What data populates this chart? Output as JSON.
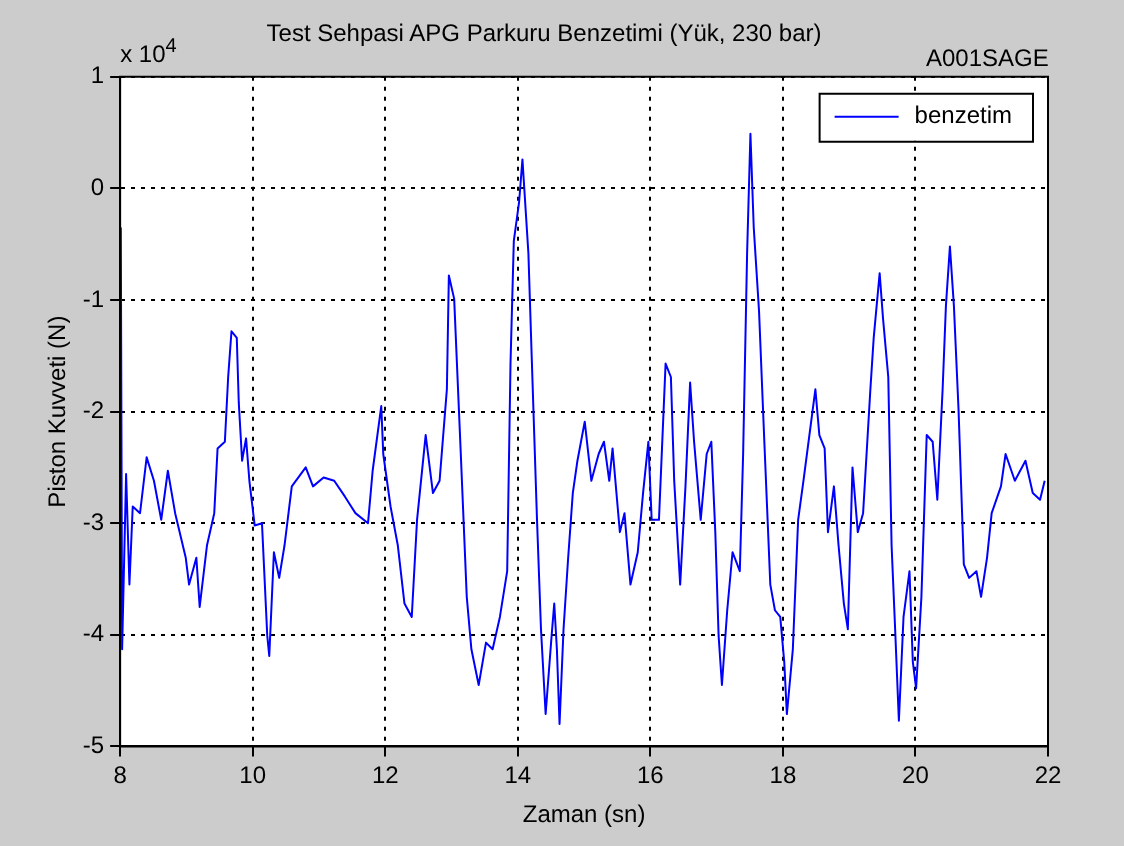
{
  "chart_data": {
    "type": "line",
    "title": "Test Sehpasi APG Parkuru Benzetimi (Yük, 230 bar)",
    "xlabel": "Zaman (sn)",
    "ylabel": "Piston Kuvveti (N)",
    "annotations": [
      "x 10$^{4}$",
      "A001SAGE"
    ],
    "xlim": [
      8,
      22
    ],
    "xticks": [
      8,
      10,
      12,
      14,
      16,
      18,
      20,
      22
    ],
    "ylim": [
      -5,
      1
    ],
    "yticks": [
      -5,
      -4,
      -3,
      -2,
      -1,
      0,
      1
    ],
    "grid": true,
    "legend": "top right",
    "line_style": "solid",
    "series": [
      {
        "name": "benzetim",
        "color": "#0000ff",
        "x": [
          8.01,
          8.03,
          8.09,
          8.14,
          8.19,
          8.3,
          8.4,
          8.51,
          8.62,
          8.72,
          8.83,
          8.99,
          9.04,
          9.15,
          9.2,
          9.31,
          9.42,
          9.47,
          9.58,
          9.63,
          9.68,
          9.76,
          9.79,
          9.84,
          9.9,
          9.95,
          10.03,
          10.14,
          10.22,
          10.25,
          10.32,
          10.4,
          10.48,
          10.59,
          10.8,
          10.91,
          11.07,
          11.23,
          11.39,
          11.55,
          11.74,
          11.81,
          11.94,
          11.97,
          12.08,
          12.19,
          12.29,
          12.4,
          12.48,
          12.61,
          12.72,
          12.82,
          12.93,
          12.96,
          13.04,
          13.14,
          13.23,
          13.3,
          13.41,
          13.52,
          13.62,
          13.73,
          13.84,
          13.89,
          13.94,
          14.02,
          14.07,
          14.16,
          14.21,
          14.29,
          14.35,
          14.42,
          14.51,
          14.55,
          14.59,
          14.63,
          14.69,
          14.76,
          14.83,
          14.9,
          15.01,
          15.11,
          15.22,
          15.3,
          15.38,
          15.43,
          15.54,
          15.61,
          15.7,
          15.81,
          15.89,
          15.97,
          16.02,
          16.13,
          16.23,
          16.31,
          16.36,
          16.45,
          16.53,
          16.6,
          16.66,
          16.76,
          16.85,
          16.92,
          16.98,
          17.03,
          17.08,
          17.16,
          17.24,
          17.35,
          17.4,
          17.46,
          17.51,
          17.56,
          17.64,
          17.72,
          17.81,
          17.88,
          17.96,
          18.02,
          18.06,
          18.15,
          18.23,
          18.31,
          18.42,
          18.49,
          18.55,
          18.63,
          18.68,
          18.77,
          18.84,
          18.92,
          18.98,
          19.05,
          19.13,
          19.21,
          19.32,
          19.37,
          19.46,
          19.51,
          19.59,
          19.64,
          19.69,
          19.75,
          19.82,
          19.91,
          19.96,
          20.01,
          20.09,
          20.17,
          20.26,
          20.33,
          20.41,
          20.46,
          20.52,
          20.58,
          20.65,
          20.73,
          20.81,
          20.92,
          20.99,
          21.08,
          21.15,
          21.29,
          21.36,
          21.5,
          21.66,
          21.77,
          21.88,
          21.95
        ],
        "values": [
          -0.35,
          -4.13,
          -2.56,
          -3.55,
          -2.85,
          -2.91,
          -2.41,
          -2.62,
          -2.97,
          -2.53,
          -2.91,
          -3.31,
          -3.55,
          -3.31,
          -3.75,
          -3.2,
          -2.91,
          -2.33,
          -2.27,
          -1.69,
          -1.28,
          -1.34,
          -1.92,
          -2.44,
          -2.24,
          -2.62,
          -3.02,
          -3.0,
          -4.01,
          -4.19,
          -3.26,
          -3.49,
          -3.2,
          -2.67,
          -2.5,
          -2.67,
          -2.59,
          -2.62,
          -2.76,
          -2.91,
          -3.0,
          -2.53,
          -1.95,
          -2.38,
          -2.85,
          -3.2,
          -3.72,
          -3.84,
          -2.97,
          -2.21,
          -2.73,
          -2.62,
          -1.8,
          -0.78,
          -0.99,
          -2.38,
          -3.66,
          -4.13,
          -4.45,
          -4.07,
          -4.13,
          -3.84,
          -3.43,
          -1.57,
          -0.47,
          -0.12,
          0.26,
          -0.58,
          -1.51,
          -2.97,
          -3.95,
          -4.71,
          -4.01,
          -3.72,
          -4.13,
          -4.8,
          -3.95,
          -3.31,
          -2.73,
          -2.44,
          -2.09,
          -2.62,
          -2.38,
          -2.27,
          -2.62,
          -2.33,
          -3.08,
          -2.91,
          -3.55,
          -3.26,
          -2.73,
          -2.27,
          -2.97,
          -2.97,
          -1.57,
          -1.69,
          -2.62,
          -3.55,
          -2.67,
          -1.74,
          -2.27,
          -2.97,
          -2.38,
          -2.27,
          -3.08,
          -4.01,
          -4.45,
          -3.78,
          -3.26,
          -3.43,
          -2.38,
          -0.58,
          0.49,
          -0.35,
          -1.1,
          -2.27,
          -3.55,
          -3.78,
          -3.84,
          -4.24,
          -4.71,
          -4.13,
          -2.97,
          -2.62,
          -2.12,
          -1.8,
          -2.21,
          -2.33,
          -3.08,
          -2.67,
          -3.2,
          -3.72,
          -3.95,
          -2.5,
          -3.08,
          -2.91,
          -1.8,
          -1.34,
          -0.76,
          -1.16,
          -1.69,
          -3.2,
          -3.9,
          -4.77,
          -3.84,
          -3.43,
          -4.24,
          -4.48,
          -3.66,
          -2.21,
          -2.27,
          -2.79,
          -1.8,
          -1.05,
          -0.52,
          -1.05,
          -1.98,
          -3.37,
          -3.49,
          -3.43,
          -3.66,
          -3.31,
          -2.91,
          -2.67,
          -2.38,
          -2.62,
          -2.44,
          -2.73,
          -2.79,
          -2.62
        ]
      }
    ]
  }
}
